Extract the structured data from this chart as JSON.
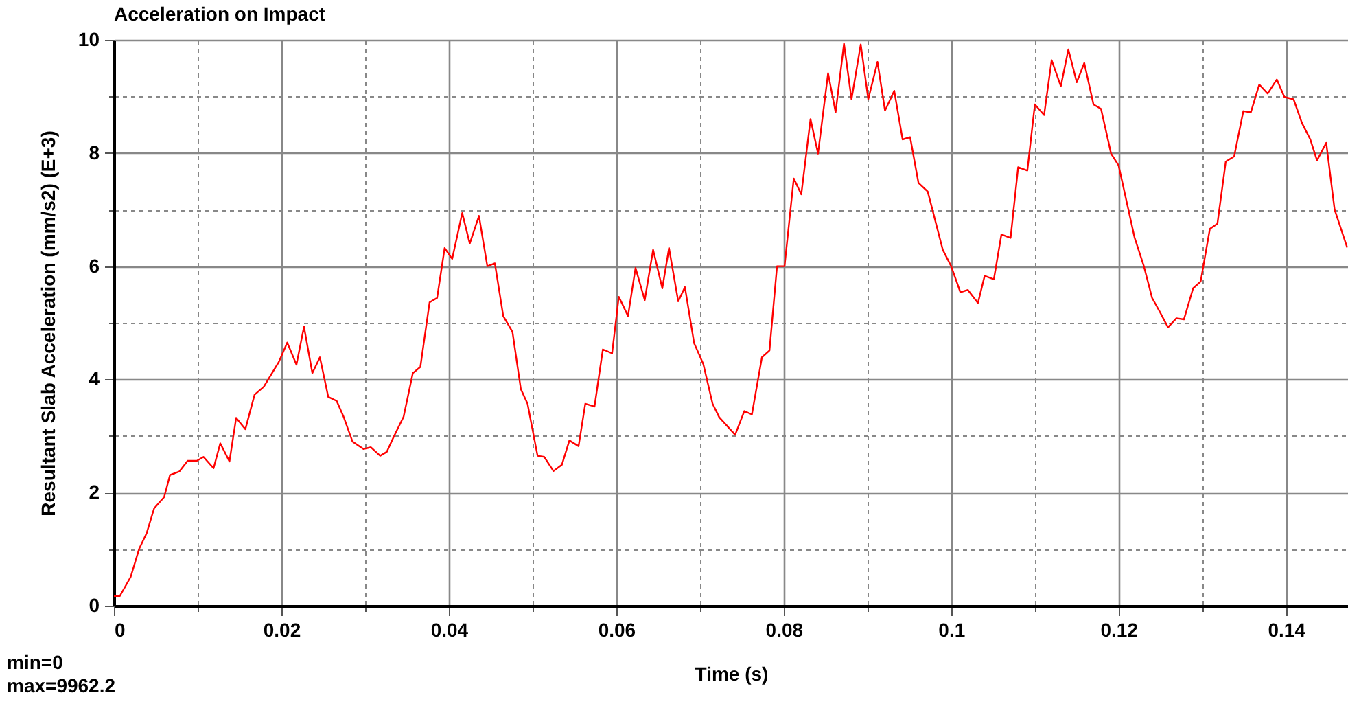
{
  "chart_data": {
    "type": "line",
    "title": "Acceleration on Impact",
    "xlabel": "Time (s)",
    "ylabel": "Resultant Slab Acceleration (mm/s2) (E+3)",
    "annotations": [
      "min=0",
      "max=9962.2"
    ],
    "x": [
      0,
      0.0007,
      0.002,
      0.003,
      0.0039,
      0.0048,
      0.006,
      0.0067,
      0.0078,
      0.0088,
      0.0099,
      0.0107,
      0.0119,
      0.0127,
      0.0138,
      0.0146,
      0.0157,
      0.0168,
      0.0179,
      0.0197,
      0.0207,
      0.0218,
      0.0227,
      0.0237,
      0.0246,
      0.0256,
      0.0266,
      0.0274,
      0.0285,
      0.0298,
      0.0307,
      0.0318,
      0.0326,
      0.0334,
      0.0346,
      0.0357,
      0.0366,
      0.0377,
      0.0386,
      0.0395,
      0.0404,
      0.0416,
      0.0425,
      0.0436,
      0.0446,
      0.0455,
      0.0465,
      0.0476,
      0.0486,
      0.0494,
      0.0506,
      0.0514,
      0.0525,
      0.0535,
      0.0544,
      0.0555,
      0.0563,
      0.0574,
      0.0584,
      0.0595,
      0.0603,
      0.0614,
      0.0623,
      0.0634,
      0.0644,
      0.0655,
      0.0663,
      0.0674,
      0.0682,
      0.0693,
      0.0704,
      0.0715,
      0.0723,
      0.0742,
      0.0753,
      0.0762,
      0.0774,
      0.0783,
      0.0792,
      0.0801,
      0.0812,
      0.0821,
      0.0832,
      0.0841,
      0.0853,
      0.0862,
      0.0872,
      0.0881,
      0.0892,
      0.0901,
      0.0912,
      0.0921,
      0.0932,
      0.0942,
      0.0951,
      0.0961,
      0.0972,
      0.099,
      0.1,
      0.1011,
      0.102,
      0.1032,
      0.104,
      0.1051,
      0.106,
      0.1071,
      0.108,
      0.1091,
      0.11,
      0.1111,
      0.112,
      0.1131,
      0.114,
      0.115,
      0.1159,
      0.117,
      0.1179,
      0.1191,
      0.12,
      0.1219,
      0.123,
      0.124,
      0.1249,
      0.1259,
      0.1269,
      0.1278,
      0.1289,
      0.1298,
      0.1309,
      0.1318,
      0.1328,
      0.1338,
      0.1349,
      0.1358,
      0.1368,
      0.1378,
      0.1389,
      0.1398,
      0.1409,
      0.1419,
      0.1429,
      0.1437,
      0.1448,
      0.1458,
      0.1473
    ],
    "series": [
      {
        "color": "#ff0000",
        "values": [
          0.17,
          0.17,
          0.51,
          1.0,
          1.28,
          1.72,
          1.92,
          2.31,
          2.37,
          2.56,
          2.56,
          2.63,
          2.43,
          2.87,
          2.55,
          3.32,
          3.12,
          3.73,
          3.87,
          4.31,
          4.65,
          4.26,
          4.93,
          4.11,
          4.39,
          3.69,
          3.62,
          3.35,
          2.9,
          2.77,
          2.8,
          2.65,
          2.72,
          2.98,
          3.34,
          4.11,
          4.22,
          5.36,
          5.44,
          6.32,
          6.13,
          6.94,
          6.4,
          6.89,
          6.0,
          6.05,
          5.12,
          4.84,
          3.83,
          3.57,
          2.65,
          2.63,
          2.38,
          2.49,
          2.92,
          2.82,
          3.57,
          3.52,
          4.53,
          4.46,
          5.46,
          5.12,
          5.97,
          5.4,
          6.29,
          5.61,
          6.32,
          5.38,
          5.63,
          4.64,
          4.27,
          3.57,
          3.33,
          3.02,
          3.44,
          3.38,
          4.39,
          4.51,
          6.0,
          6.0,
          7.55,
          7.27,
          8.6,
          7.99,
          9.41,
          8.72,
          9.93,
          8.95,
          9.92,
          8.95,
          9.61,
          8.75,
          9.1,
          8.24,
          8.28,
          7.47,
          7.32,
          6.29,
          6.0,
          5.54,
          5.58,
          5.35,
          5.83,
          5.77,
          6.56,
          6.5,
          7.75,
          7.69,
          8.86,
          8.67,
          9.64,
          9.18,
          9.83,
          9.25,
          9.59,
          8.86,
          8.78,
          7.99,
          7.78,
          6.51,
          6.01,
          5.44,
          5.2,
          4.92,
          5.08,
          5.06,
          5.61,
          5.73,
          6.66,
          6.75,
          7.85,
          7.94,
          8.74,
          8.72,
          9.21,
          9.05,
          9.3,
          8.99,
          8.95,
          8.53,
          8.24,
          7.87,
          8.18,
          7.0,
          6.33
        ]
      }
    ],
    "xlim": [
      0,
      0.1474
    ],
    "ylim": [
      0,
      10
    ],
    "xticks": [
      0,
      {
        "value": 0.01,
        "label": null
      },
      0.02,
      {
        "value": 0.03,
        "label": null
      },
      0.04,
      {
        "value": 0.05,
        "label": null
      },
      0.06,
      {
        "value": 0.07,
        "label": null
      },
      0.08,
      {
        "value": 0.09,
        "label": null
      },
      0.1,
      {
        "value": 0.11,
        "label": null
      },
      0.12,
      {
        "value": 0.13,
        "label": null
      },
      0.14
    ],
    "yticks": [
      0,
      {
        "value": 1,
        "label": null
      },
      2,
      {
        "value": 3,
        "label": null
      },
      4,
      {
        "value": 5,
        "label": null
      },
      6,
      {
        "value": 7,
        "label": null
      },
      8,
      {
        "value": 9,
        "label": null
      },
      10
    ],
    "grid": true
  }
}
